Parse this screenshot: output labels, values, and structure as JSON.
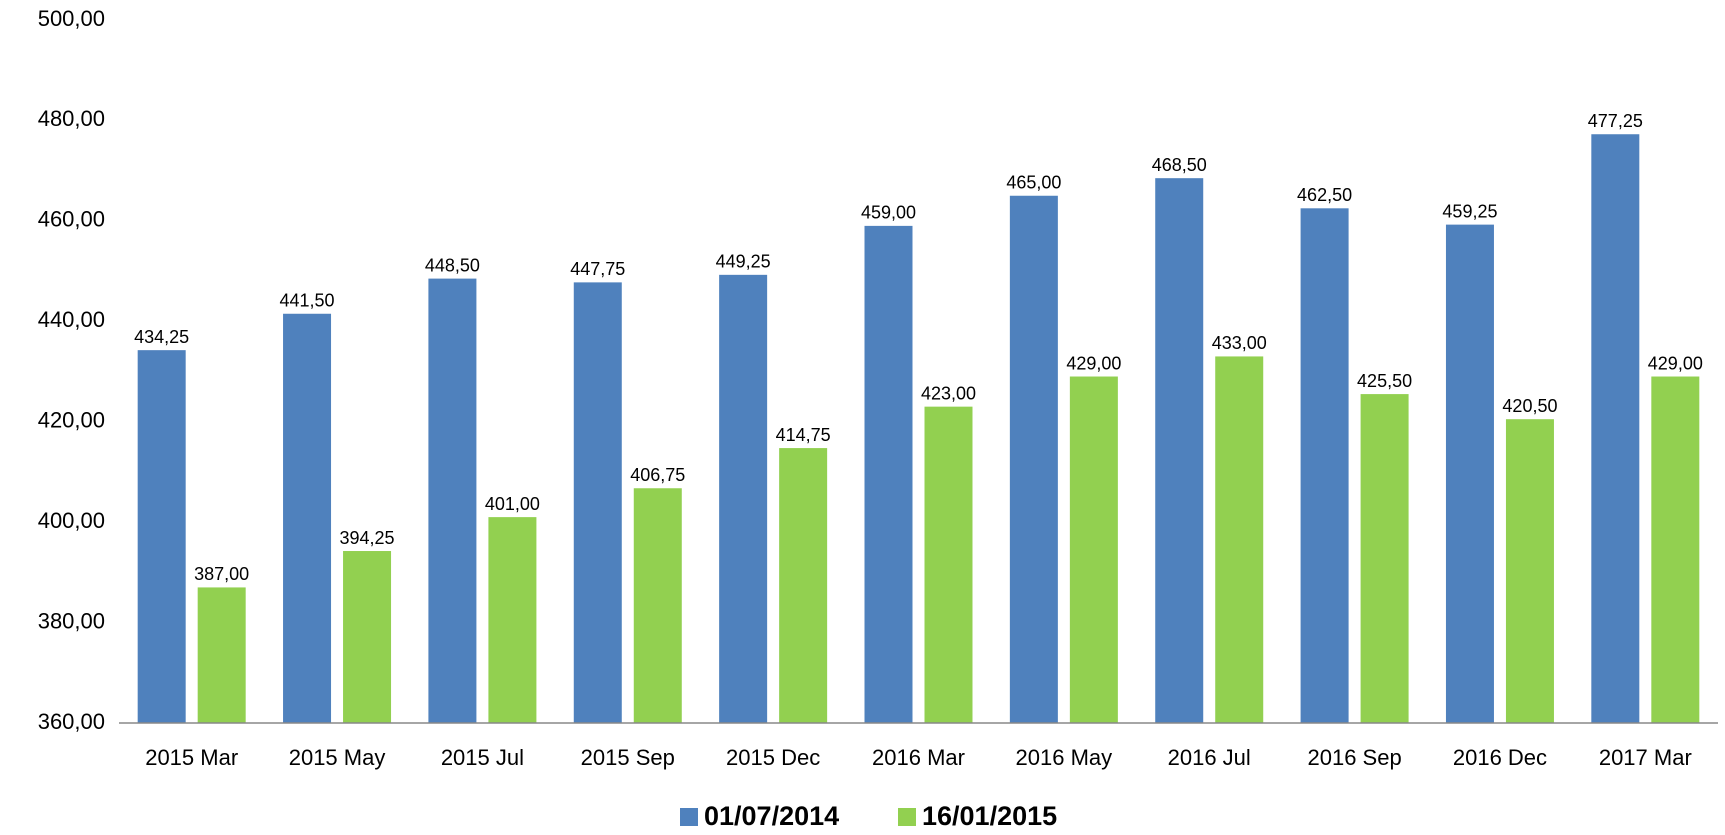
{
  "chart_data": {
    "type": "bar",
    "categories": [
      "2015 Mar",
      "2015 May",
      "2015 Jul",
      "2015 Sep",
      "2015 Dec",
      "2016 Mar",
      "2016 May",
      "2016 Jul",
      "2016 Sep",
      "2016 Dec",
      "2017 Mar"
    ],
    "series": [
      {
        "name": "01/07/2014",
        "color": "#4f81bd",
        "values": [
          434.25,
          441.5,
          448.5,
          447.75,
          449.25,
          459,
          465,
          468.5,
          462.5,
          459.25,
          477.25
        ],
        "value_labels": [
          "434,25",
          "441,50",
          "448,50",
          "447,75",
          "449,25",
          "459,00",
          "465,00",
          "468,50",
          "462,50",
          "459,25",
          "477,25"
        ]
      },
      {
        "name": "16/01/2015",
        "color": "#92d050",
        "values": [
          387,
          394.25,
          401,
          406.75,
          414.75,
          423,
          429,
          433,
          425.5,
          420.5,
          429
        ],
        "value_labels": [
          "387,00",
          "394,25",
          "401,00",
          "406,75",
          "414,75",
          "423,00",
          "429,00",
          "433,00",
          "425,50",
          "420,50",
          "429,00"
        ]
      }
    ],
    "ylim": [
      360,
      500
    ],
    "yticks": [
      {
        "value": 360,
        "label": "360,00"
      },
      {
        "value": 380,
        "label": "380,00"
      },
      {
        "value": 400,
        "label": "400,00"
      },
      {
        "value": 420,
        "label": "420,00"
      },
      {
        "value": 440,
        "label": "440,00"
      },
      {
        "value": 460,
        "label": "460,00"
      },
      {
        "value": 480,
        "label": "480,00"
      },
      {
        "value": 500,
        "label": "500,00"
      }
    ],
    "grid": false,
    "legend": "bottom"
  }
}
